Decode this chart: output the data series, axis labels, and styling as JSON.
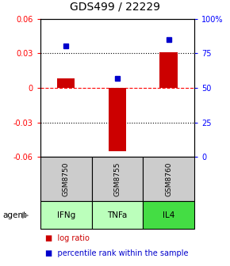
{
  "title": "GDS499 / 22229",
  "samples": [
    "GSM8750",
    "GSM8755",
    "GSM8760"
  ],
  "agents": [
    "IFNg",
    "TNFa",
    "IL4"
  ],
  "log_ratios": [
    0.008,
    -0.055,
    0.031
  ],
  "percentile_ranks": [
    0.8,
    0.57,
    0.85
  ],
  "ylim_left": [
    -0.06,
    0.06
  ],
  "ylim_right": [
    0,
    1.0
  ],
  "bar_color": "#cc0000",
  "square_color": "#0000cc",
  "sample_bg": "#cccccc",
  "agent_bg_colors": [
    "#bbffbb",
    "#bbffbb",
    "#44dd44"
  ],
  "grid_lines_dotted": [
    0.03,
    -0.03
  ],
  "grid_line_dashed": 0.0,
  "title_fontsize": 10,
  "tick_fontsize": 7,
  "label_fontsize": 7,
  "legend_fontsize": 7,
  "bar_width": 0.35
}
